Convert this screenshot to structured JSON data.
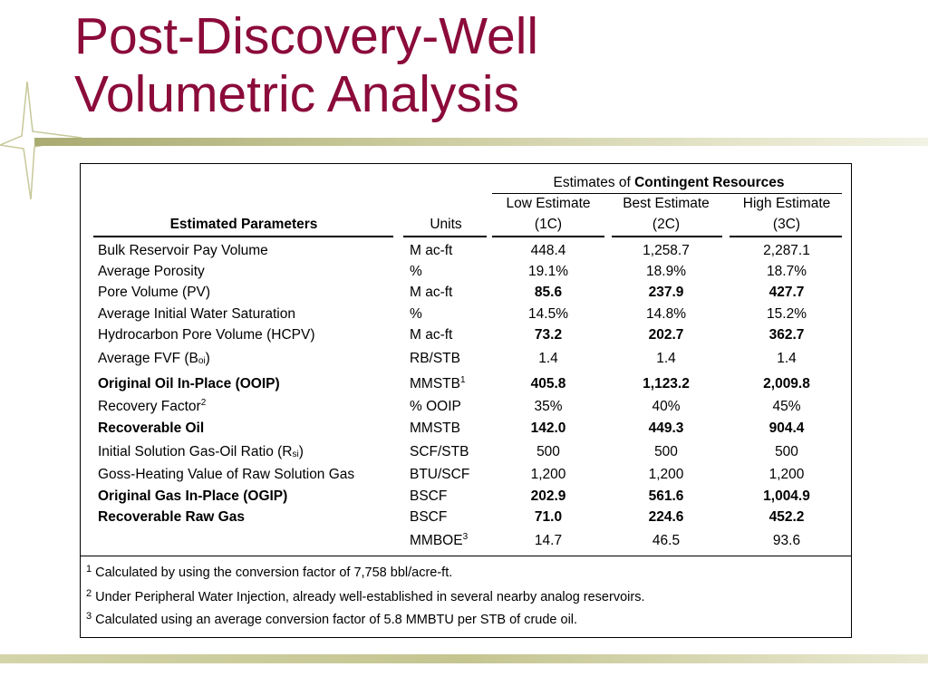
{
  "title": {
    "line1": "Post-Discovery-Well",
    "line2": "Volumetric Analysis"
  },
  "table": {
    "group_header_prefix": "Estimates of",
    "group_header_bold": "Contingent Resources",
    "col_param": "Estimated Parameters",
    "col_units": "Units",
    "estimates": [
      {
        "label": "Low Estimate",
        "code": "(1C)"
      },
      {
        "label": "Best Estimate",
        "code": "(2C)"
      },
      {
        "label": "High Estimate",
        "code": "(3C)"
      }
    ],
    "rows": [
      {
        "param": "Bulk Reservoir Pay Volume",
        "units": "M ac-ft",
        "low": "448.4",
        "best": "1,258.7",
        "high": "2,287.1",
        "bold_param": false,
        "bold_values": false
      },
      {
        "param": "Average Porosity",
        "units": "%",
        "low": "19.1%",
        "best": "18.9%",
        "high": "18.7%",
        "bold_param": false,
        "bold_values": false
      },
      {
        "param": "Pore Volume (PV)",
        "units": "M ac-ft",
        "low": "85.6",
        "best": "237.9",
        "high": "427.7",
        "bold_param": false,
        "bold_values": true
      },
      {
        "param": "Average Initial Water Saturation",
        "units": "%",
        "low": "14.5%",
        "best": "14.8%",
        "high": "15.2%",
        "bold_param": false,
        "bold_values": false
      },
      {
        "param": "Hydrocarbon Pore Volume (HCPV)",
        "units": "M ac-ft",
        "low": "73.2",
        "best": "202.7",
        "high": "362.7",
        "bold_param": false,
        "bold_values": true
      },
      {
        "param": "Average FVF (B",
        "param_sub": "oi",
        "param_suffix": ")",
        "units": "RB/STB",
        "low": "1.4",
        "best": "1.4",
        "high": "1.4",
        "bold_param": false,
        "bold_values": false
      },
      {
        "param": "Original Oil In-Place (OOIP)",
        "units": "MMSTB",
        "units_sup": "1",
        "low": "405.8",
        "best": "1,123.2",
        "high": "2,009.8",
        "bold_param": true,
        "bold_values": true
      },
      {
        "param": "Recovery Factor",
        "param_sup": "2",
        "units": "% OOIP",
        "low": "35%",
        "best": "40%",
        "high": "45%",
        "bold_param": false,
        "bold_values": false
      },
      {
        "param": "Recoverable Oil",
        "units": "MMSTB",
        "low": "142.0",
        "best": "449.3",
        "high": "904.4",
        "bold_param": true,
        "bold_values": true
      },
      {
        "param": "Initial Solution Gas-Oil Ratio (R",
        "param_sub": "si",
        "param_suffix": ")",
        "units": "SCF/STB",
        "low": "500",
        "best": "500",
        "high": "500",
        "bold_param": false,
        "bold_values": false
      },
      {
        "param": "Goss-Heating Value of Raw Solution Gas",
        "units": "BTU/SCF",
        "low": "1,200",
        "best": "1,200",
        "high": "1,200",
        "bold_param": false,
        "bold_values": false
      },
      {
        "param": "Original Gas In-Place (OGIP)",
        "units": "BSCF",
        "low": "202.9",
        "best": "561.6",
        "high": "1,004.9",
        "bold_param": true,
        "bold_values": true
      },
      {
        "param": "Recoverable Raw Gas",
        "units": "BSCF",
        "low": "71.0",
        "best": "224.6",
        "high": "452.2",
        "bold_param": true,
        "bold_values": true
      },
      {
        "param": "",
        "units": "MMBOE",
        "units_sup": "3",
        "low": "14.7",
        "best": "46.5",
        "high": "93.6",
        "bold_param": false,
        "bold_values": false
      }
    ],
    "footnotes": [
      {
        "num": "1",
        "text": "Calculated by using the conversion factor of 7,758 bbl/acre-ft."
      },
      {
        "num": "2",
        "text": "Under Peripheral Water Injection, already well-established in several nearby analog reservoirs."
      },
      {
        "num": "3",
        "text": "Calculated using an average conversion factor of 5.8 MMBTU per STB of crude oil."
      }
    ]
  },
  "colors": {
    "title": "#8b0b3a",
    "bar": "#c8c99a"
  }
}
